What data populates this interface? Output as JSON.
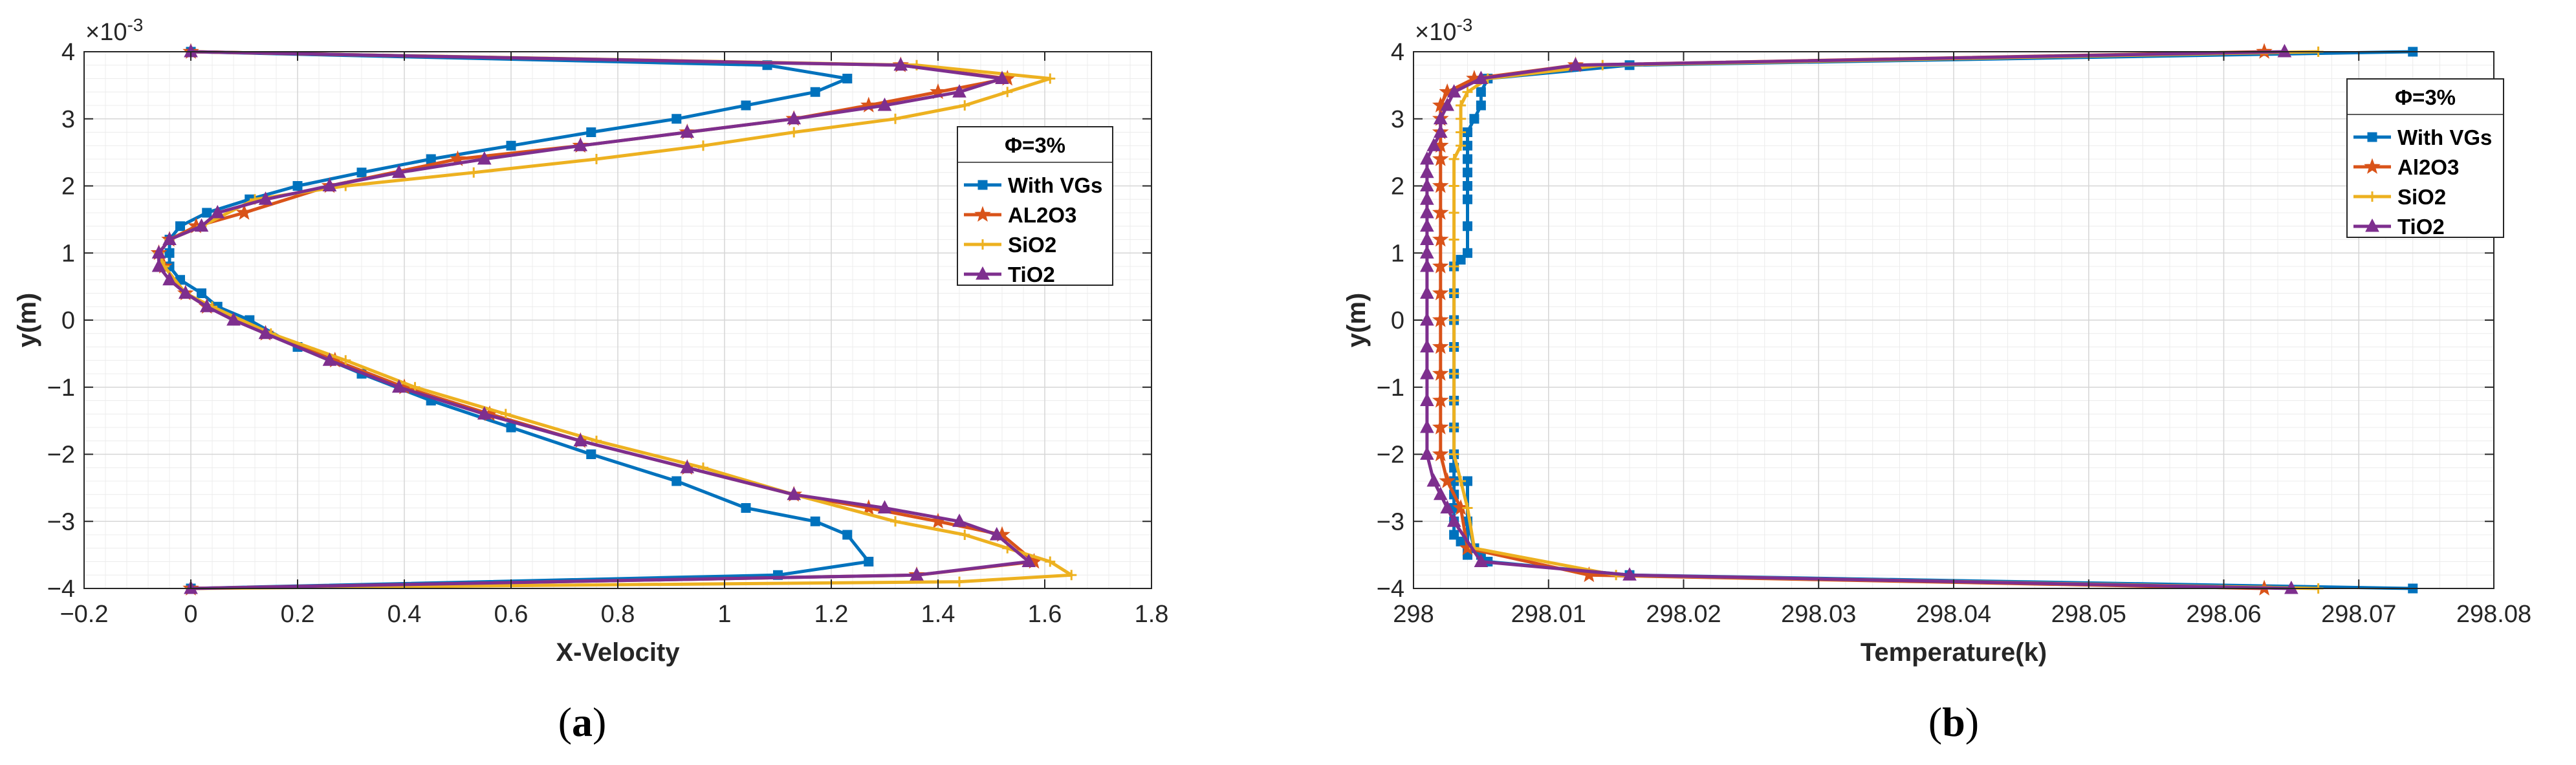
{
  "chart_data": [
    {
      "type": "line",
      "caption_letter": "a",
      "xlabel": "X-Velocity",
      "ylabel": "y(m)",
      "y_exponent": "×10",
      "y_exponent_power": "-3",
      "xlim": [
        -0.2,
        1.8
      ],
      "ylim": [
        -4,
        4
      ],
      "xticks": [
        -0.2,
        0,
        0.2,
        0.4,
        0.6,
        0.8,
        1,
        1.2,
        1.4,
        1.6,
        1.8
      ],
      "xtick_labels": [
        "−0.2",
        "0",
        "0.2",
        "0.4",
        "0.6",
        "0.8",
        "1",
        "1.2",
        "1.4",
        "1.6",
        "1.8"
      ],
      "yticks": [
        -4,
        -3,
        -2,
        -1,
        0,
        1,
        2,
        3,
        4
      ],
      "ytick_labels": [
        "−4",
        "−3",
        "−2",
        "−1",
        "0",
        "1",
        "2",
        "3",
        "4"
      ],
      "grid": true,
      "legend": {
        "title": "Φ=3%",
        "position": "right",
        "entries": [
          "With VGs",
          "AL2O3",
          "SiO2",
          "TiO2"
        ]
      },
      "series": [
        {
          "name": "With VGs",
          "color": "#0072BD",
          "marker": "square",
          "x": [
            0,
            1.08,
            1.23,
            1.17,
            1.04,
            0.91,
            0.75,
            0.6,
            0.45,
            0.32,
            0.2,
            0.11,
            0.03,
            -0.02,
            -0.04,
            -0.04,
            -0.04,
            -0.02,
            0.02,
            0.05,
            0.11,
            0.2,
            0.32,
            0.45,
            0.6,
            0.75,
            0.91,
            1.04,
            1.17,
            1.23,
            1.27,
            1.1,
            0
          ],
          "y": [
            4,
            3.8,
            3.6,
            3.4,
            3.2,
            3.0,
            2.8,
            2.6,
            2.4,
            2.2,
            2.0,
            1.8,
            1.6,
            1.4,
            1.2,
            1.0,
            0.8,
            0.6,
            0.4,
            0.2,
            0,
            -0.4,
            -0.8,
            -1.2,
            -1.6,
            -2.0,
            -2.4,
            -2.8,
            -3.0,
            -3.2,
            -3.6,
            -3.8,
            -4
          ]
        },
        {
          "name": "AL2O3",
          "color": "#D95319",
          "marker": "star",
          "x": [
            0,
            1.33,
            1.53,
            1.4,
            1.27,
            1.13,
            0.93,
            0.73,
            0.5,
            0.26,
            0.1,
            0.01,
            -0.04,
            -0.06,
            -0.05,
            -0.01,
            0.03,
            0.14,
            0.27,
            0.4,
            0.56,
            0.73,
            0.93,
            1.13,
            1.27,
            1.4,
            1.52,
            1.58,
            1.36,
            0
          ],
          "y": [
            4,
            3.8,
            3.6,
            3.4,
            3.2,
            3.0,
            2.8,
            2.6,
            2.4,
            2.0,
            1.6,
            1.4,
            1.2,
            1.0,
            0.8,
            0.4,
            0.2,
            -0.2,
            -0.6,
            -1.0,
            -1.4,
            -1.8,
            -2.2,
            -2.6,
            -2.8,
            -3.0,
            -3.2,
            -3.6,
            -3.8,
            -4
          ]
        },
        {
          "name": "SiO2",
          "color": "#EDB120",
          "marker": "plus",
          "x": [
            0,
            1.36,
            1.61,
            1.53,
            1.45,
            1.32,
            1.13,
            0.96,
            0.76,
            0.53,
            0.29,
            0.12,
            0.02,
            -0.04,
            -0.06,
            -0.05,
            -0.01,
            0.04,
            0.15,
            0.29,
            0.42,
            0.59,
            0.76,
            0.96,
            1.13,
            1.32,
            1.45,
            1.53,
            1.61,
            1.65,
            1.44,
            0
          ],
          "y": [
            4,
            3.8,
            3.6,
            3.4,
            3.2,
            3.0,
            2.8,
            2.6,
            2.4,
            2.2,
            2.0,
            1.8,
            1.4,
            1.2,
            1.0,
            0.8,
            0.4,
            0.2,
            -0.2,
            -0.6,
            -1.0,
            -1.4,
            -1.8,
            -2.2,
            -2.6,
            -3.0,
            -3.2,
            -3.4,
            -3.6,
            -3.8,
            -3.9,
            -4
          ]
        },
        {
          "name": "TiO2",
          "color": "#7E2F8E",
          "marker": "triangle",
          "x": [
            0,
            1.33,
            1.52,
            1.44,
            1.3,
            1.13,
            0.93,
            0.73,
            0.55,
            0.39,
            0.26,
            0.14,
            0.05,
            0.02,
            -0.04,
            -0.06,
            -0.06,
            -0.04,
            -0.01,
            0.03,
            0.08,
            0.14,
            0.26,
            0.39,
            0.55,
            0.73,
            0.93,
            1.13,
            1.3,
            1.44,
            1.51,
            1.57,
            1.36,
            0
          ],
          "y": [
            4,
            3.8,
            3.6,
            3.4,
            3.2,
            3.0,
            2.8,
            2.6,
            2.4,
            2.2,
            2.0,
            1.8,
            1.6,
            1.4,
            1.2,
            1.0,
            0.8,
            0.6,
            0.4,
            0.2,
            0,
            -0.2,
            -0.6,
            -1.0,
            -1.4,
            -1.8,
            -2.2,
            -2.6,
            -2.8,
            -3.0,
            -3.2,
            -3.6,
            -3.8,
            -4
          ]
        }
      ]
    },
    {
      "type": "line",
      "caption_letter": "b",
      "xlabel": "Temperature(k)",
      "ylabel": "y(m)",
      "y_exponent": "×10",
      "y_exponent_power": "-3",
      "xlim": [
        298,
        298.08
      ],
      "ylim": [
        -4,
        4
      ],
      "xticks": [
        298,
        298.01,
        298.02,
        298.03,
        298.04,
        298.05,
        298.06,
        298.07,
        298.08
      ],
      "xtick_labels": [
        "298",
        "298.01",
        "298.02",
        "298.03",
        "298.04",
        "298.05",
        "298.06",
        "298.07",
        "298.08"
      ],
      "yticks": [
        -4,
        -3,
        -2,
        -1,
        0,
        1,
        2,
        3,
        4
      ],
      "ytick_labels": [
        "−4",
        "−3",
        "−2",
        "−1",
        "0",
        "1",
        "2",
        "3",
        "4"
      ],
      "grid": true,
      "legend": {
        "title": "Φ=3%",
        "position": "top-right",
        "entries": [
          "With VGs",
          "Al2O3",
          "SiO2",
          "TiO2"
        ]
      },
      "series": [
        {
          "name": "With VGs",
          "color": "#0072BD",
          "marker": "square",
          "x": [
            298.074,
            298.016,
            298.0055,
            298.005,
            298.005,
            298.0045,
            298.004,
            298.004,
            298.004,
            298.004,
            298.004,
            298.004,
            298.004,
            298.004,
            298.0035,
            298.003,
            298.003,
            298.003,
            298.003,
            298.003,
            298.003,
            298.003,
            298.003,
            298.003,
            298.003,
            298.003,
            298.003,
            298.003,
            298.003,
            298.0035,
            298.004,
            298.004,
            298.004,
            298.004,
            298.0045,
            298.005,
            298.0055,
            298.016,
            298.074
          ],
          "y": [
            4,
            3.8,
            3.6,
            3.4,
            3.2,
            3.0,
            2.8,
            2.6,
            2.4,
            2.2,
            2.0,
            1.8,
            1.4,
            1.0,
            0.9,
            0.8,
            0.4,
            0,
            -0.4,
            -0.8,
            -1.2,
            -1.6,
            -2.0,
            -2.2,
            -2.4,
            -2.6,
            -2.8,
            -3.0,
            -3.2,
            -3.3,
            -3.4,
            -3.5,
            -2.4,
            -3.0,
            -3.4,
            -3.5,
            -3.6,
            -3.8,
            -4
          ]
        },
        {
          "name": "Al2O3",
          "color": "#D95319",
          "marker": "star",
          "x": [
            298.063,
            298.012,
            298.0045,
            298.0025,
            298.002,
            298.002,
            298.002,
            298.002,
            298.002,
            298.002,
            298.002,
            298.002,
            298.002,
            298.002,
            298.002,
            298.002,
            298.002,
            298.002,
            298.002,
            298.002,
            298.0025,
            298.0035,
            298.004,
            298.013,
            298.063
          ],
          "y": [
            4,
            3.8,
            3.6,
            3.4,
            3.2,
            3.0,
            2.8,
            2.6,
            2.4,
            2.0,
            1.6,
            1.2,
            0.8,
            0.4,
            0,
            -0.4,
            -0.8,
            -1.2,
            -1.6,
            -2.0,
            -2.4,
            -2.8,
            -3.4,
            -3.8,
            -4
          ]
        },
        {
          "name": "SiO2",
          "color": "#EDB120",
          "marker": "plus",
          "x": [
            298.067,
            298.014,
            298.0055,
            298.004,
            298.0035,
            298.0035,
            298.0035,
            298.0035,
            298.003,
            298.003,
            298.003,
            298.003,
            298.003,
            298.003,
            298.003,
            298.003,
            298.003,
            298.003,
            298.003,
            298.003,
            298.0035,
            298.004,
            298.0045,
            298.015,
            298.067
          ],
          "y": [
            4,
            3.8,
            3.6,
            3.4,
            3.2,
            3.0,
            2.8,
            2.6,
            2.4,
            2.0,
            1.6,
            1.2,
            0.8,
            0.4,
            0,
            -0.4,
            -0.8,
            -1.2,
            -1.6,
            -2.0,
            -2.4,
            -2.8,
            -3.4,
            -3.8,
            -4
          ]
        },
        {
          "name": "TiO2",
          "color": "#7E2F8E",
          "marker": "triangle",
          "x": [
            298.0645,
            298.012,
            298.005,
            298.003,
            298.0025,
            298.002,
            298.002,
            298.0015,
            298.001,
            298.001,
            298.001,
            298.001,
            298.001,
            298.001,
            298.001,
            298.001,
            298.001,
            298.001,
            298.001,
            298.001,
            298.001,
            298.001,
            298.001,
            298.001,
            298.0015,
            298.002,
            298.0025,
            298.003,
            298.005,
            298.016,
            298.065
          ],
          "y": [
            4,
            3.8,
            3.6,
            3.4,
            3.2,
            3.0,
            2.8,
            2.6,
            2.4,
            2.2,
            2.0,
            1.8,
            1.6,
            1.4,
            1.2,
            1.0,
            0.8,
            0.4,
            0,
            -0.4,
            -0.8,
            -1.2,
            -1.6,
            -2.0,
            -2.4,
            -2.6,
            -2.8,
            -3.0,
            -3.6,
            -3.8,
            -4
          ]
        }
      ]
    }
  ]
}
